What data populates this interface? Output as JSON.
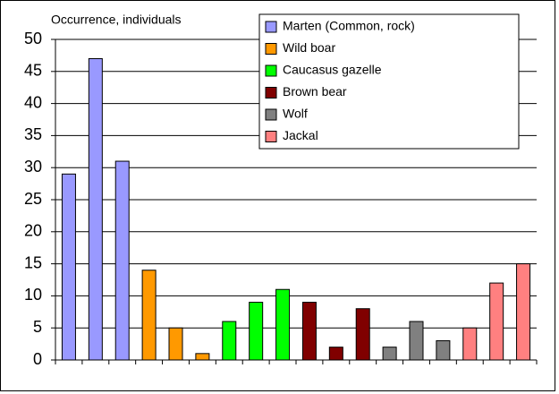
{
  "chart_data": {
    "type": "bar",
    "y_label": "Occurrence, individuals",
    "categories": [
      null,
      null,
      null,
      null,
      null,
      null,
      null,
      null,
      null,
      null,
      null,
      null,
      null,
      null,
      null,
      null,
      null,
      null
    ],
    "series": [
      {
        "name": "Marten (Common, rock)",
        "color": "#9999ff",
        "values": [
          29,
          47,
          31,
          null,
          null,
          null,
          null,
          null,
          null,
          null,
          null,
          null,
          null,
          null,
          null,
          null,
          null,
          null
        ]
      },
      {
        "name": "Wild boar",
        "color": "#ff9900",
        "values": [
          null,
          null,
          null,
          14,
          5,
          1,
          null,
          null,
          null,
          null,
          null,
          null,
          null,
          null,
          null,
          null,
          null,
          null
        ]
      },
      {
        "name": "Caucasus gazelle",
        "color": "#00ff00",
        "values": [
          null,
          null,
          null,
          null,
          null,
          null,
          6,
          9,
          11,
          null,
          null,
          null,
          null,
          null,
          null,
          null,
          null,
          null
        ]
      },
      {
        "name": "Brown bear",
        "color": "#800000",
        "values": [
          null,
          null,
          null,
          null,
          null,
          null,
          null,
          null,
          null,
          9,
          2,
          8,
          null,
          null,
          null,
          null,
          null,
          null
        ]
      },
      {
        "name": "Wolf",
        "color": "#808080",
        "values": [
          null,
          null,
          null,
          null,
          null,
          null,
          null,
          null,
          null,
          null,
          null,
          null,
          2,
          6,
          3,
          null,
          null,
          null
        ]
      },
      {
        "name": "Jackal",
        "color": "#ff8080",
        "values": [
          null,
          null,
          null,
          null,
          null,
          null,
          null,
          null,
          null,
          null,
          null,
          null,
          null,
          null,
          null,
          5,
          12,
          15
        ]
      }
    ],
    "ylim": [
      0,
      50
    ],
    "yticks": [
      0,
      5,
      10,
      15,
      20,
      25,
      30,
      35,
      40,
      45,
      50
    ],
    "grid": true,
    "legend": "top-right"
  }
}
